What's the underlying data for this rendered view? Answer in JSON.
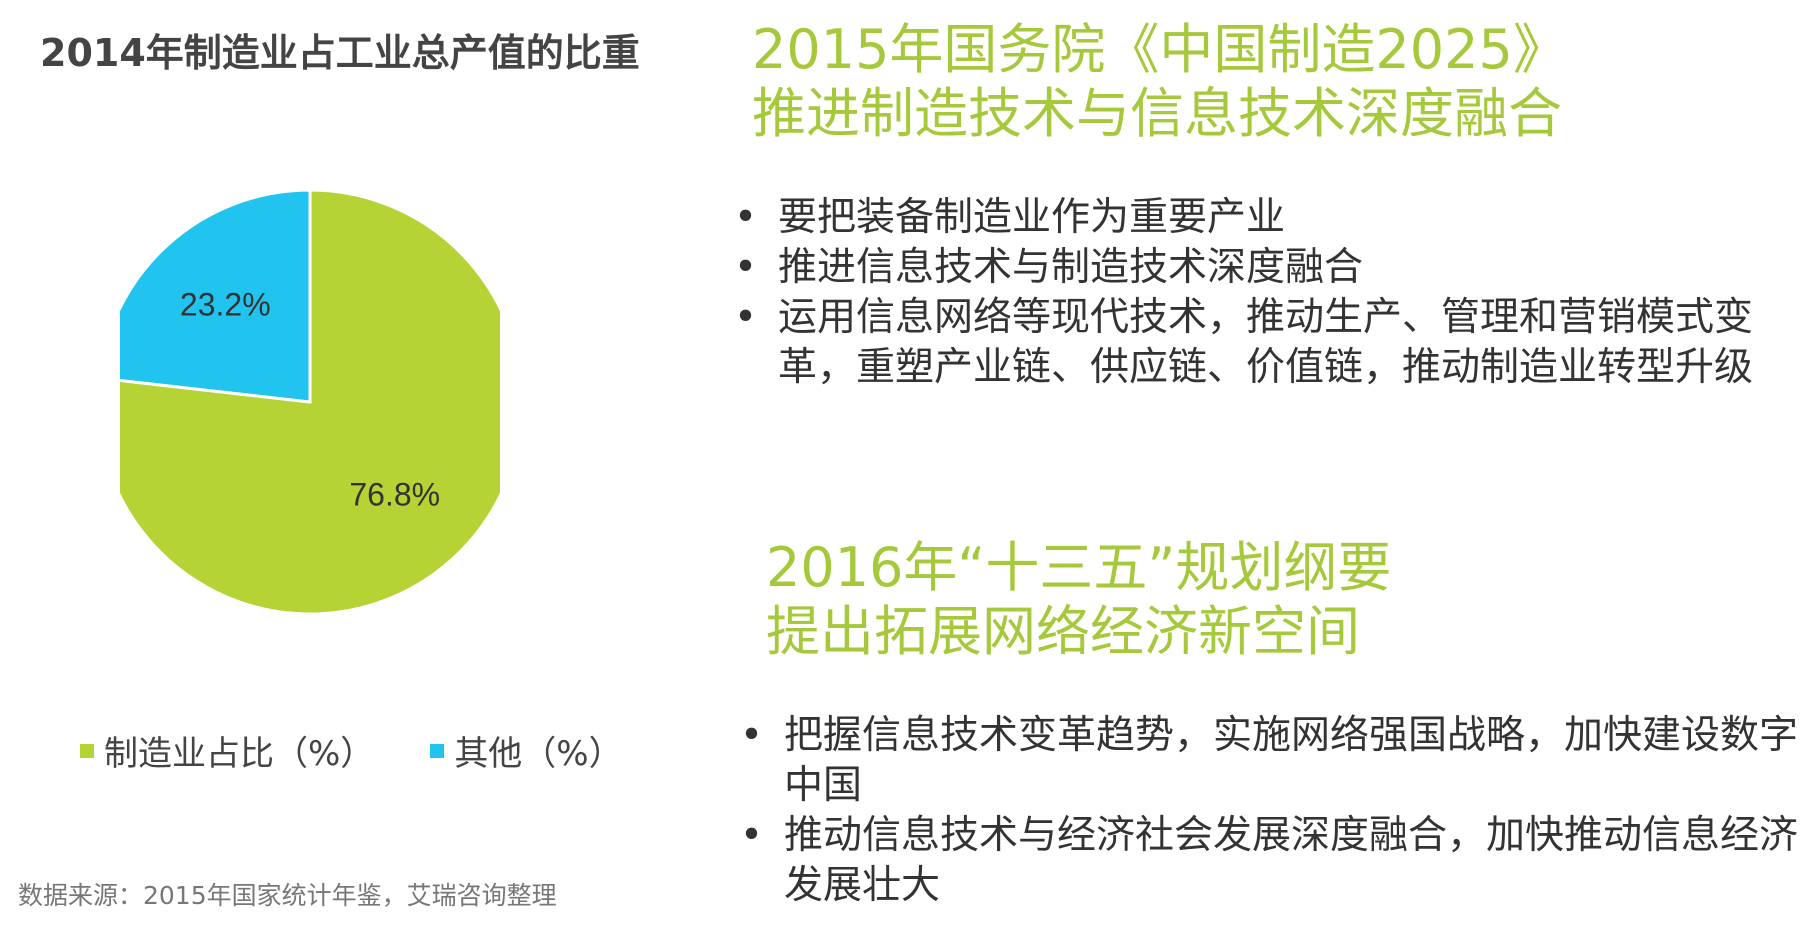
{
  "chart_data": {
    "type": "pie",
    "title": "2014年制造业占工业总产值的比重",
    "slices": [
      {
        "label": "制造业占比（%）",
        "value": 76.8,
        "display": "76.8%",
        "color": "#b5d334"
      },
      {
        "label": "其他（%）",
        "value": 23.2,
        "display": "23.2%",
        "color": "#21c3ef"
      }
    ],
    "legend_position": "bottom"
  },
  "source": "数据来源：2015年国家统计年鉴，艾瑞咨询整理",
  "section1": {
    "title_line1": "2015年国务院《中国制造2025》",
    "title_line2": "推进制造技术与信息技术深度融合",
    "bullets": [
      "要把装备制造业作为重要产业",
      "推进信息技术与制造技术深度融合",
      "运用信息网络等现代技术，推动生产、管理和营销模式变革，重塑产业链、供应链、价值链，推动制造业转型升级"
    ]
  },
  "section2": {
    "title_line1": "2016年“十三五”规划纲要",
    "title_line2": "提出拓展网络经济新空间",
    "bullets": [
      "把握信息技术变革趋势，实施网络强国战略，加快建设数字中国",
      "推动信息技术与经济社会发展深度融合，加快推动信息经济发展壮大"
    ]
  },
  "colors": {
    "accent_green": "#a5c93a",
    "pie_green": "#b5d334",
    "pie_blue": "#21c3ef",
    "text_dark": "#333333"
  }
}
